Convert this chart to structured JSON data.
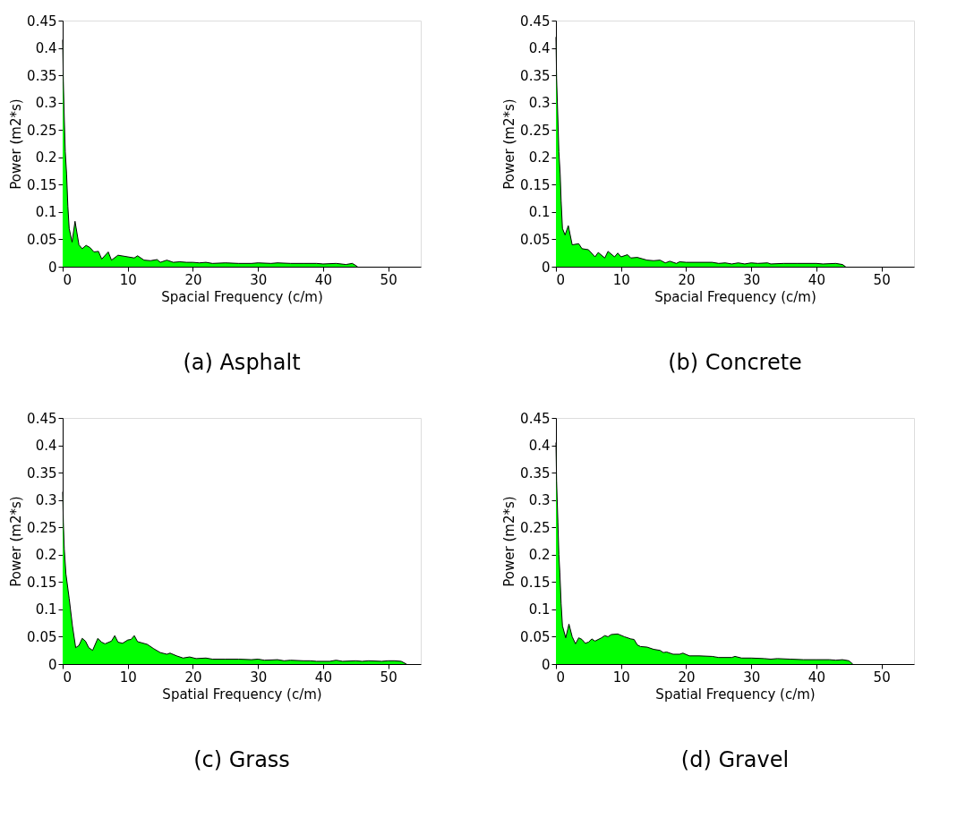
{
  "chart_data": [
    {
      "type": "area",
      "title": "(a) Asphalt",
      "xlabel": "Spacial Frequency (c/m)",
      "ylabel": "Power (m2*s)",
      "xlim": [
        0,
        55
      ],
      "ylim": [
        0,
        0.45
      ],
      "xticks": [
        0,
        10,
        20,
        30,
        40,
        50
      ],
      "yticks": [
        0,
        0.05,
        0.1,
        0.15,
        0.2,
        0.25,
        0.3,
        0.35,
        0.4,
        0.45
      ],
      "grid": false,
      "series": [
        {
          "color": "#00ff00",
          "x": [
            0,
            0.1,
            0.25,
            0.4,
            0.6,
            0.8,
            1.0,
            1.45,
            1.9,
            2.5,
            3.0,
            3.6,
            4.2,
            4.8,
            5.5,
            6.0,
            7.0,
            7.5,
            8.5,
            9.5,
            11,
            11.5,
            12.5,
            13.5,
            14.5,
            15,
            16,
            17,
            18,
            19,
            20,
            21,
            22,
            23,
            25,
            27,
            29,
            30,
            32,
            33,
            35,
            37,
            39,
            40,
            42,
            43.5,
            44.5,
            45.3
          ],
          "values": [
            0.415,
            0.34,
            0.27,
            0.21,
            0.17,
            0.11,
            0.07,
            0.045,
            0.083,
            0.04,
            0.033,
            0.039,
            0.035,
            0.027,
            0.028,
            0.014,
            0.027,
            0.012,
            0.021,
            0.019,
            0.016,
            0.02,
            0.012,
            0.011,
            0.013,
            0.008,
            0.012,
            0.008,
            0.009,
            0.008,
            0.008,
            0.007,
            0.008,
            0.006,
            0.007,
            0.006,
            0.006,
            0.007,
            0.006,
            0.007,
            0.006,
            0.006,
            0.006,
            0.005,
            0.006,
            0.004,
            0.006,
            0
          ]
        }
      ]
    },
    {
      "type": "area",
      "title": "(b) Concrete",
      "xlabel": "Spacial Frequency (c/m)",
      "ylabel": "Power (m2*s)",
      "xlim": [
        0,
        55
      ],
      "ylim": [
        0,
        0.45
      ],
      "xticks": [
        0,
        10,
        20,
        30,
        40,
        50
      ],
      "yticks": [
        0,
        0.05,
        0.1,
        0.15,
        0.2,
        0.25,
        0.3,
        0.35,
        0.4,
        0.45
      ],
      "grid": false,
      "series": [
        {
          "color": "#00ff00",
          "x": [
            0,
            0.1,
            0.3,
            0.45,
            0.65,
            0.8,
            1.0,
            1.4,
            1.9,
            2.5,
            3.5,
            4.0,
            5.0,
            6.0,
            6.5,
            7.5,
            8.0,
            9.0,
            9.5,
            10,
            11,
            11.5,
            12.5,
            14,
            15,
            16,
            16.8,
            17.5,
            18.5,
            19,
            20,
            22,
            24,
            25,
            26,
            27,
            28,
            29,
            30,
            31,
            32.5,
            33,
            35,
            37,
            40,
            41,
            43,
            44,
            44.5
          ],
          "values": [
            0.42,
            0.345,
            0.27,
            0.21,
            0.17,
            0.12,
            0.07,
            0.058,
            0.075,
            0.04,
            0.042,
            0.033,
            0.031,
            0.018,
            0.026,
            0.016,
            0.028,
            0.018,
            0.025,
            0.018,
            0.022,
            0.016,
            0.017,
            0.012,
            0.011,
            0.012,
            0.007,
            0.01,
            0.006,
            0.009,
            0.008,
            0.008,
            0.008,
            0.006,
            0.007,
            0.005,
            0.007,
            0.005,
            0.007,
            0.006,
            0.007,
            0.005,
            0.006,
            0.006,
            0.006,
            0.005,
            0.006,
            0.004,
            0
          ]
        }
      ]
    },
    {
      "type": "area",
      "title": "(c) Grass",
      "xlabel": "Spatial Frequency (c/m)",
      "ylabel": "Power (m2*s)",
      "xlim": [
        0,
        55
      ],
      "ylim": [
        0,
        0.45
      ],
      "xticks": [
        0,
        10,
        20,
        30,
        40,
        50
      ],
      "yticks": [
        0,
        0.05,
        0.1,
        0.15,
        0.2,
        0.25,
        0.3,
        0.35,
        0.4,
        0.45
      ],
      "grid": false,
      "series": [
        {
          "color": "#00ff00",
          "x": [
            0,
            0.1,
            0.25,
            0.5,
            1.0,
            1.5,
            2.0,
            2.5,
            3.0,
            3.5,
            4.0,
            4.6,
            5.4,
            6.0,
            6.5,
            7.5,
            8.0,
            8.5,
            9.2,
            10,
            10.5,
            11.0,
            11.5,
            13,
            14,
            15,
            16,
            16.5,
            17.5,
            18.5,
            19.5,
            20.5,
            22,
            23,
            25,
            27,
            29,
            30,
            31,
            33,
            34,
            35,
            37,
            38,
            39,
            41,
            42,
            43,
            45,
            46,
            47,
            49,
            50,
            51,
            52,
            52.8
          ],
          "values": [
            0.315,
            0.26,
            0.21,
            0.165,
            0.12,
            0.07,
            0.03,
            0.034,
            0.047,
            0.042,
            0.03,
            0.025,
            0.047,
            0.04,
            0.037,
            0.042,
            0.052,
            0.04,
            0.038,
            0.044,
            0.045,
            0.052,
            0.041,
            0.036,
            0.028,
            0.021,
            0.018,
            0.02,
            0.015,
            0.011,
            0.013,
            0.01,
            0.011,
            0.009,
            0.009,
            0.009,
            0.008,
            0.009,
            0.007,
            0.008,
            0.006,
            0.007,
            0.006,
            0.006,
            0.005,
            0.005,
            0.007,
            0.005,
            0.006,
            0.005,
            0.006,
            0.005,
            0.006,
            0.006,
            0.005,
            0
          ]
        }
      ]
    },
    {
      "type": "area",
      "title": "(d) Gravel",
      "xlabel": "Spatial Frequency (c/m)",
      "ylabel": "Power (m2*s)",
      "xlim": [
        0,
        55
      ],
      "ylim": [
        0,
        0.45
      ],
      "xticks": [
        0,
        10,
        20,
        30,
        40,
        50
      ],
      "yticks": [
        0,
        0.05,
        0.1,
        0.15,
        0.2,
        0.25,
        0.3,
        0.35,
        0.4,
        0.45
      ],
      "grid": false,
      "series": [
        {
          "color": "#00ff00",
          "x": [
            0,
            0.1,
            0.3,
            0.45,
            0.6,
            0.8,
            1.0,
            1.5,
            2.0,
            2.5,
            3.0,
            3.5,
            4.0,
            4.5,
            5.0,
            5.5,
            6.0,
            7.0,
            7.5,
            8.0,
            8.5,
            9.5,
            10.5,
            11.5,
            12,
            12.5,
            13,
            14,
            15,
            16,
            16.5,
            17,
            18,
            19,
            19.5,
            20.5,
            22,
            24,
            25,
            27,
            27.5,
            28.5,
            30,
            32,
            33,
            34,
            36,
            38,
            40,
            42,
            43,
            44,
            45,
            45.6
          ],
          "values": [
            0.405,
            0.335,
            0.26,
            0.2,
            0.167,
            0.11,
            0.07,
            0.048,
            0.073,
            0.05,
            0.037,
            0.048,
            0.045,
            0.038,
            0.04,
            0.046,
            0.042,
            0.048,
            0.052,
            0.05,
            0.054,
            0.055,
            0.05,
            0.046,
            0.045,
            0.035,
            0.032,
            0.031,
            0.027,
            0.025,
            0.021,
            0.022,
            0.018,
            0.018,
            0.02,
            0.015,
            0.015,
            0.014,
            0.012,
            0.012,
            0.014,
            0.011,
            0.011,
            0.01,
            0.009,
            0.01,
            0.009,
            0.008,
            0.008,
            0.008,
            0.007,
            0.008,
            0.006,
            0
          ]
        }
      ]
    }
  ]
}
